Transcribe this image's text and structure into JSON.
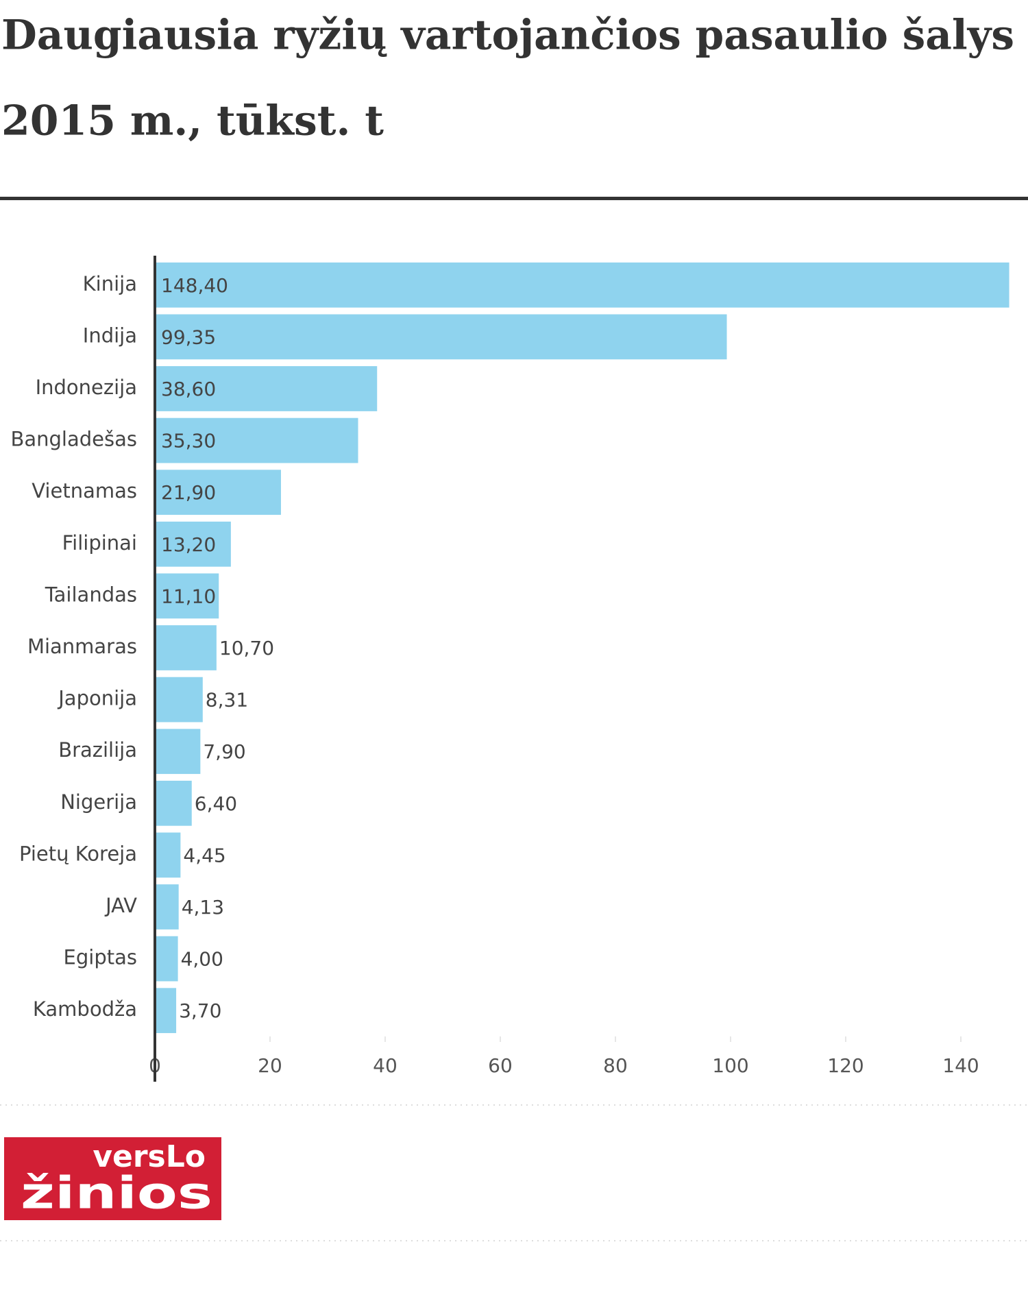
{
  "chart_data": {
    "type": "hbar",
    "title": "Daugiausia ryžių vartojančios pasaulio šalys",
    "subtitle": "2015 m., tūkst. t",
    "categories": [
      "Kinija",
      "Indija",
      "Indonezija",
      "Bangladešas",
      "Vietnamas",
      "Filipinai",
      "Tailandas",
      "Mianmaras",
      "Japonija",
      "Brazilija",
      "Nigerija",
      "Pietų Koreja",
      "JAV",
      "Egiptas",
      "Kambodža"
    ],
    "values": [
      148.4,
      99.35,
      38.6,
      35.3,
      21.9,
      13.2,
      11.1,
      10.7,
      8.31,
      7.9,
      6.4,
      4.45,
      4.13,
      4.0,
      3.7
    ],
    "value_labels": [
      "148,40",
      "99,35",
      "38,60",
      "35,30",
      "21,90",
      "13,20",
      "11,10",
      "10,70",
      "8,31",
      "7,90",
      "6,40",
      "4,45",
      "4,13",
      "4,00",
      "3,70"
    ],
    "color": "#8fd3ee",
    "xlim": [
      0,
      150
    ],
    "xticks": [
      0,
      20,
      40,
      60,
      80,
      100,
      120,
      140
    ],
    "grid": false
  },
  "logo": {
    "line1": "versLo",
    "line2": "žinios"
  }
}
